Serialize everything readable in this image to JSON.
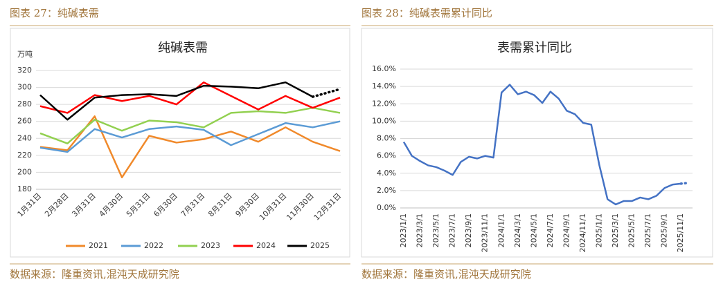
{
  "figures": [
    {
      "label": "图表 27：纯碱表需"
    },
    {
      "label": "图表 28：纯碱表需累计同比"
    }
  ],
  "sources": [
    "数据来源：隆重资讯,混沌天成研究院",
    "数据来源：隆重资讯,混沌天成研究院"
  ],
  "chart_data": [
    {
      "type": "line",
      "title": "纯碱表需",
      "y_label": "万吨",
      "categories": [
        "1月31日",
        "2月28日",
        "3月31日",
        "4月30日",
        "5月31日",
        "6月30日",
        "7月31日",
        "8月31日",
        "9月30日",
        "10月31日",
        "11月30日",
        "12月31日"
      ],
      "series": [
        {
          "name": "2021",
          "color": "#f0892a",
          "values": [
            230,
            226,
            266,
            194,
            243,
            235,
            239,
            248,
            236,
            253,
            236,
            225
          ]
        },
        {
          "name": "2022",
          "color": "#5b9bd5",
          "values": [
            229,
            224,
            251,
            241,
            251,
            254,
            250,
            232,
            245,
            258,
            253,
            260
          ]
        },
        {
          "name": "2023",
          "color": "#92d050",
          "values": [
            246,
            234,
            262,
            249,
            261,
            259,
            253,
            270,
            272,
            270,
            276,
            270
          ]
        },
        {
          "name": "2024",
          "color": "#ff0000",
          "values": [
            278,
            270,
            291,
            284,
            290,
            280,
            306,
            290,
            274,
            290,
            276,
            288
          ]
        },
        {
          "name": "2025",
          "color": "#000000",
          "values": [
            291,
            262,
            288,
            291,
            292,
            290,
            302,
            301,
            299,
            306,
            289,
            298
          ],
          "dotted_last_segment": true
        }
      ],
      "ylim": [
        180,
        320
      ],
      "yticks": [
        180,
        200,
        220,
        240,
        260,
        280,
        300,
        320
      ],
      "grid": true,
      "legend": "bottom"
    },
    {
      "type": "line",
      "title": "表需累计同比",
      "categories": [
        "2023/1/1",
        null,
        "2023/3/1",
        null,
        "2023/5/1",
        null,
        "2023/7/1",
        null,
        "2023/9/1",
        null,
        "2023/11/1",
        null,
        "2024/1/1",
        null,
        "2024/3/1",
        null,
        "2024/5/1",
        null,
        "2024/7/1",
        null,
        "2024/9/1",
        null,
        "2024/11/1",
        null,
        "2025/1/1",
        null,
        "2025/3/1",
        null,
        "2025/5/1",
        null,
        "2025/7/1",
        null,
        "2025/9/1",
        null,
        "2025/11/1",
        null
      ],
      "series": [
        {
          "color": "#4472c4",
          "values": [
            7.6,
            6.0,
            5.4,
            4.9,
            4.7,
            4.3,
            3.8,
            5.3,
            5.9,
            5.7,
            6.0,
            5.8,
            13.3,
            14.2,
            13.1,
            13.4,
            13.0,
            12.1,
            13.4,
            12.6,
            11.2,
            10.8,
            9.8,
            9.6,
            4.9,
            1.0,
            0.4,
            0.8,
            0.8,
            1.2,
            1.0,
            1.4,
            2.3,
            2.7,
            2.8,
            2.9
          ],
          "dotted_last_segment": true
        }
      ],
      "ylim": [
        0,
        16
      ],
      "yticks": [
        {
          "value": 0,
          "label": "0.0%"
        },
        {
          "value": 2,
          "label": "2.0%"
        },
        {
          "value": 4,
          "label": "4.0%"
        },
        {
          "value": 6,
          "label": "6.0%"
        },
        {
          "value": 8,
          "label": "8.0%"
        },
        {
          "value": 10,
          "label": "10.0%"
        },
        {
          "value": 12,
          "label": "12.0%"
        },
        {
          "value": 14,
          "label": "14.0%"
        },
        {
          "value": 16,
          "label": "16.0%"
        }
      ],
      "grid": true
    }
  ]
}
